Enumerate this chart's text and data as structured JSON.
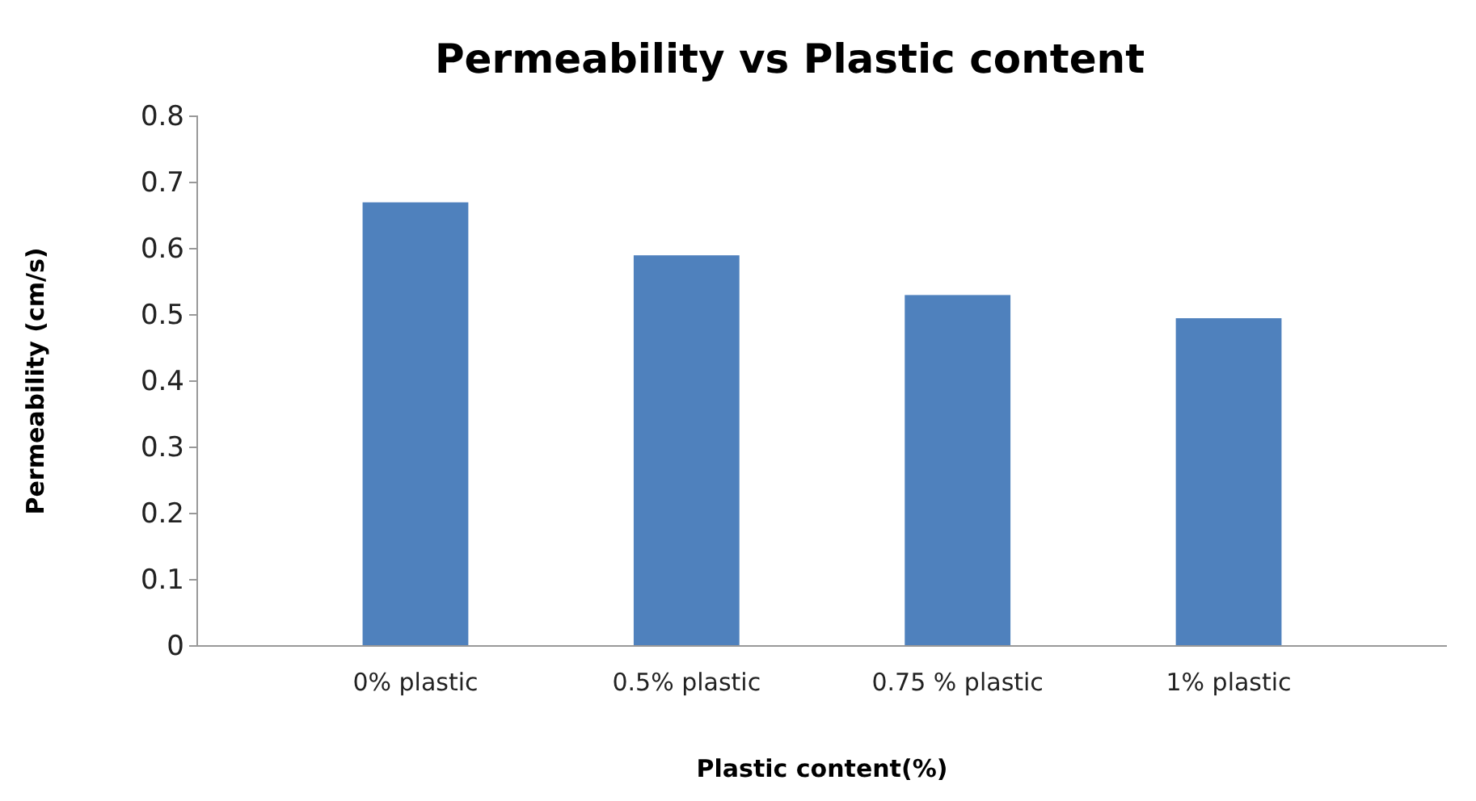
{
  "chart_data": {
    "type": "bar",
    "title": "Permeability vs Plastic content",
    "xlabel": "Plastic content(%)",
    "ylabel": "Permeability (cm/s)",
    "categories": [
      "0% plastic",
      "0.5% plastic",
      "0.75 % plastic",
      "1% plastic"
    ],
    "values": [
      0.67,
      0.59,
      0.53,
      0.495
    ],
    "color": "#4f81bd",
    "ylim": [
      0,
      0.8
    ],
    "yticks": [
      0,
      0.1,
      0.2,
      0.3,
      0.4,
      0.5,
      0.6,
      0.7,
      0.8
    ]
  }
}
